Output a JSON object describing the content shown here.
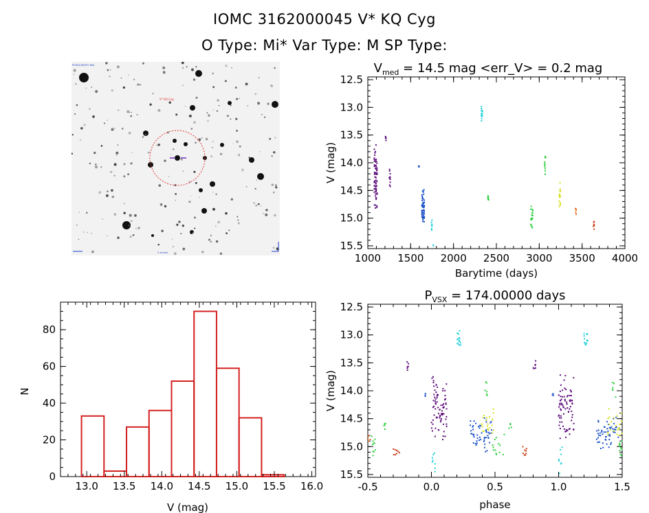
{
  "header": {
    "line1": "IOMC 3162000045    V* KQ Cyg",
    "line2": "O Type: Mi*   Var Type: M   SP Type:"
  },
  "colors": {
    "histogram": "#d42020",
    "finder_circle": "#e03030",
    "purple": "#5a0a7a",
    "blue": "#1a50c8",
    "cyan": "#20d0d8",
    "green": "#30d040",
    "yellow": "#d8e020",
    "orange": "#e06010",
    "rust": "#c83c14"
  },
  "finder": {
    "label_target": "V* KQ Cyg",
    "label_corner": "POSS2/UKSTU Red",
    "label_scale": "5 arcmin"
  },
  "chart_data": [
    {
      "id": "lightcurve",
      "type": "scatter",
      "title_main": "V",
      "title_sub": "med",
      "title_rest": " = 14.5 mag <err_V> = 0.2 mag",
      "xlabel": "Barytime (days)",
      "ylabel": "V (mag)",
      "xlim": [
        1000,
        4000
      ],
      "ylim": [
        15.55,
        12.45
      ],
      "xticks": [
        "1000",
        "1500",
        "2000",
        "2500",
        "3000",
        "3500",
        "4000"
      ],
      "yticks": [
        "12.5",
        "13.0",
        "13.5",
        "14.0",
        "14.5",
        "15.0",
        "15.5"
      ],
      "clusters": [
        {
          "color": "purple",
          "x0": 1075,
          "x1": 1110,
          "y0": 14.95,
          "y1": 13.65,
          "n": 70
        },
        {
          "color": "purple",
          "x0": 1205,
          "x1": 1215,
          "y0": 13.6,
          "y1": 13.5,
          "n": 6
        },
        {
          "color": "purple",
          "x0": 1250,
          "x1": 1262,
          "y0": 14.5,
          "y1": 14.05,
          "n": 12
        },
        {
          "color": "blue",
          "x0": 1590,
          "x1": 1600,
          "y0": 14.08,
          "y1": 14.05,
          "n": 4
        },
        {
          "color": "blue",
          "x0": 1630,
          "x1": 1660,
          "y0": 15.15,
          "y1": 14.45,
          "n": 55
        },
        {
          "color": "cyan",
          "x0": 1740,
          "x1": 1750,
          "y0": 15.25,
          "y1": 15.02,
          "n": 8
        },
        {
          "color": "cyan",
          "x0": 1760,
          "x1": 1766,
          "y0": 15.5,
          "y1": 15.48,
          "n": 2
        },
        {
          "color": "cyan",
          "x0": 2325,
          "x1": 2340,
          "y0": 13.25,
          "y1": 12.95,
          "n": 14
        },
        {
          "color": "green",
          "x0": 2400,
          "x1": 2412,
          "y0": 14.72,
          "y1": 14.55,
          "n": 7
        },
        {
          "color": "green",
          "x0": 2900,
          "x1": 2925,
          "y0": 15.22,
          "y1": 14.75,
          "n": 22
        },
        {
          "color": "green",
          "x0": 3060,
          "x1": 3075,
          "y0": 14.25,
          "y1": 13.8,
          "n": 12
        },
        {
          "color": "yellow",
          "x0": 3230,
          "x1": 3248,
          "y0": 14.85,
          "y1": 14.3,
          "n": 16
        },
        {
          "color": "orange",
          "x0": 3420,
          "x1": 3432,
          "y0": 14.95,
          "y1": 14.8,
          "n": 5
        },
        {
          "color": "rust",
          "x0": 3630,
          "x1": 3645,
          "y0": 15.2,
          "y1": 15.05,
          "n": 7
        }
      ]
    },
    {
      "id": "histogram",
      "type": "bar",
      "xlabel": "V (mag)",
      "ylabel": "N",
      "xlim": [
        12.65,
        16.05
      ],
      "ylim": [
        0,
        95
      ],
      "xticks": [
        "13.0",
        "13.5",
        "14.0",
        "14.5",
        "15.0",
        "15.5",
        "16.0"
      ],
      "yticks": [
        "0",
        "20",
        "40",
        "60",
        "80"
      ],
      "bin_edges": [
        12.93,
        13.23,
        13.53,
        13.83,
        14.13,
        14.43,
        14.73,
        15.03,
        15.33,
        15.63
      ],
      "values": [
        33,
        3,
        27,
        36,
        52,
        90,
        59,
        32,
        1
      ]
    },
    {
      "id": "phased",
      "type": "scatter",
      "title_main": "P",
      "title_sub": "VSX",
      "title_rest": " = 174.00000 days",
      "xlabel": "phase",
      "ylabel": "V (mag)",
      "xlim": [
        -0.5,
        1.5
      ],
      "ylim": [
        15.55,
        12.45
      ],
      "xticks": [
        "-0.5",
        "0.0",
        "0.5",
        "1.0",
        "1.5"
      ],
      "yticks": [
        "12.5",
        "13.0",
        "13.5",
        "14.0",
        "14.5",
        "15.0",
        "15.5"
      ],
      "clusters": [
        {
          "color": "purple",
          "x0": 0.0,
          "x1": 0.12,
          "y0": 14.95,
          "y1": 13.65,
          "n": 80
        },
        {
          "color": "purple",
          "x0": -0.2,
          "x1": -0.18,
          "y0": 13.65,
          "y1": 13.45,
          "n": 6
        },
        {
          "color": "blue",
          "x0": -0.05,
          "x1": -0.04,
          "y0": 14.1,
          "y1": 14.05,
          "n": 3
        },
        {
          "color": "blue",
          "x0": 0.3,
          "x1": 0.48,
          "y0": 15.1,
          "y1": 14.45,
          "n": 55
        },
        {
          "color": "cyan",
          "x0": 0.0,
          "x1": 0.03,
          "y0": 15.5,
          "y1": 15.0,
          "n": 8
        },
        {
          "color": "cyan",
          "x0": 0.2,
          "x1": 0.23,
          "y0": 13.25,
          "y1": 12.92,
          "n": 14
        },
        {
          "color": "green",
          "x0": -0.47,
          "x1": -0.44,
          "y0": 15.2,
          "y1": 14.75,
          "n": 10
        },
        {
          "color": "green",
          "x0": 0.42,
          "x1": 0.45,
          "y0": 14.15,
          "y1": 13.8,
          "n": 6
        },
        {
          "color": "green",
          "x0": 0.48,
          "x1": 0.58,
          "y0": 15.25,
          "y1": 14.75,
          "n": 14
        },
        {
          "color": "green",
          "x0": -0.38,
          "x1": -0.36,
          "y0": 14.7,
          "y1": 14.55,
          "n": 5
        },
        {
          "color": "green",
          "x0": 0.61,
          "x1": 0.63,
          "y0": 14.7,
          "y1": 14.55,
          "n": 5
        },
        {
          "color": "yellow",
          "x0": 0.38,
          "x1": 0.5,
          "y0": 14.9,
          "y1": 14.3,
          "n": 22
        },
        {
          "color": "orange",
          "x0": -0.5,
          "x1": -0.48,
          "y0": 14.95,
          "y1": 14.8,
          "n": 4
        },
        {
          "color": "rust",
          "x0": -0.3,
          "x1": -0.25,
          "y0": 15.2,
          "y1": 15.0,
          "n": 8
        },
        {
          "color": "purple",
          "x0": 1.0,
          "x1": 1.12,
          "y0": 14.95,
          "y1": 13.65,
          "n": 80
        },
        {
          "color": "purple",
          "x0": 0.8,
          "x1": 0.82,
          "y0": 13.65,
          "y1": 13.45,
          "n": 6
        },
        {
          "color": "blue",
          "x0": 0.95,
          "x1": 0.96,
          "y0": 14.1,
          "y1": 14.05,
          "n": 3
        },
        {
          "color": "blue",
          "x0": 1.3,
          "x1": 1.48,
          "y0": 15.1,
          "y1": 14.45,
          "n": 55
        },
        {
          "color": "cyan",
          "x0": 1.0,
          "x1": 1.03,
          "y0": 15.5,
          "y1": 15.0,
          "n": 8
        },
        {
          "color": "cyan",
          "x0": 1.2,
          "x1": 1.23,
          "y0": 13.25,
          "y1": 12.92,
          "n": 14
        },
        {
          "color": "green",
          "x0": 1.42,
          "x1": 1.45,
          "y0": 14.15,
          "y1": 13.8,
          "n": 6
        },
        {
          "color": "green",
          "x0": 1.47,
          "x1": 1.5,
          "y0": 15.25,
          "y1": 14.75,
          "n": 10
        },
        {
          "color": "yellow",
          "x0": 1.38,
          "x1": 1.5,
          "y0": 14.9,
          "y1": 14.3,
          "n": 22
        },
        {
          "color": "rust",
          "x0": 0.7,
          "x1": 0.75,
          "y0": 15.2,
          "y1": 15.0,
          "n": 8
        }
      ]
    }
  ]
}
